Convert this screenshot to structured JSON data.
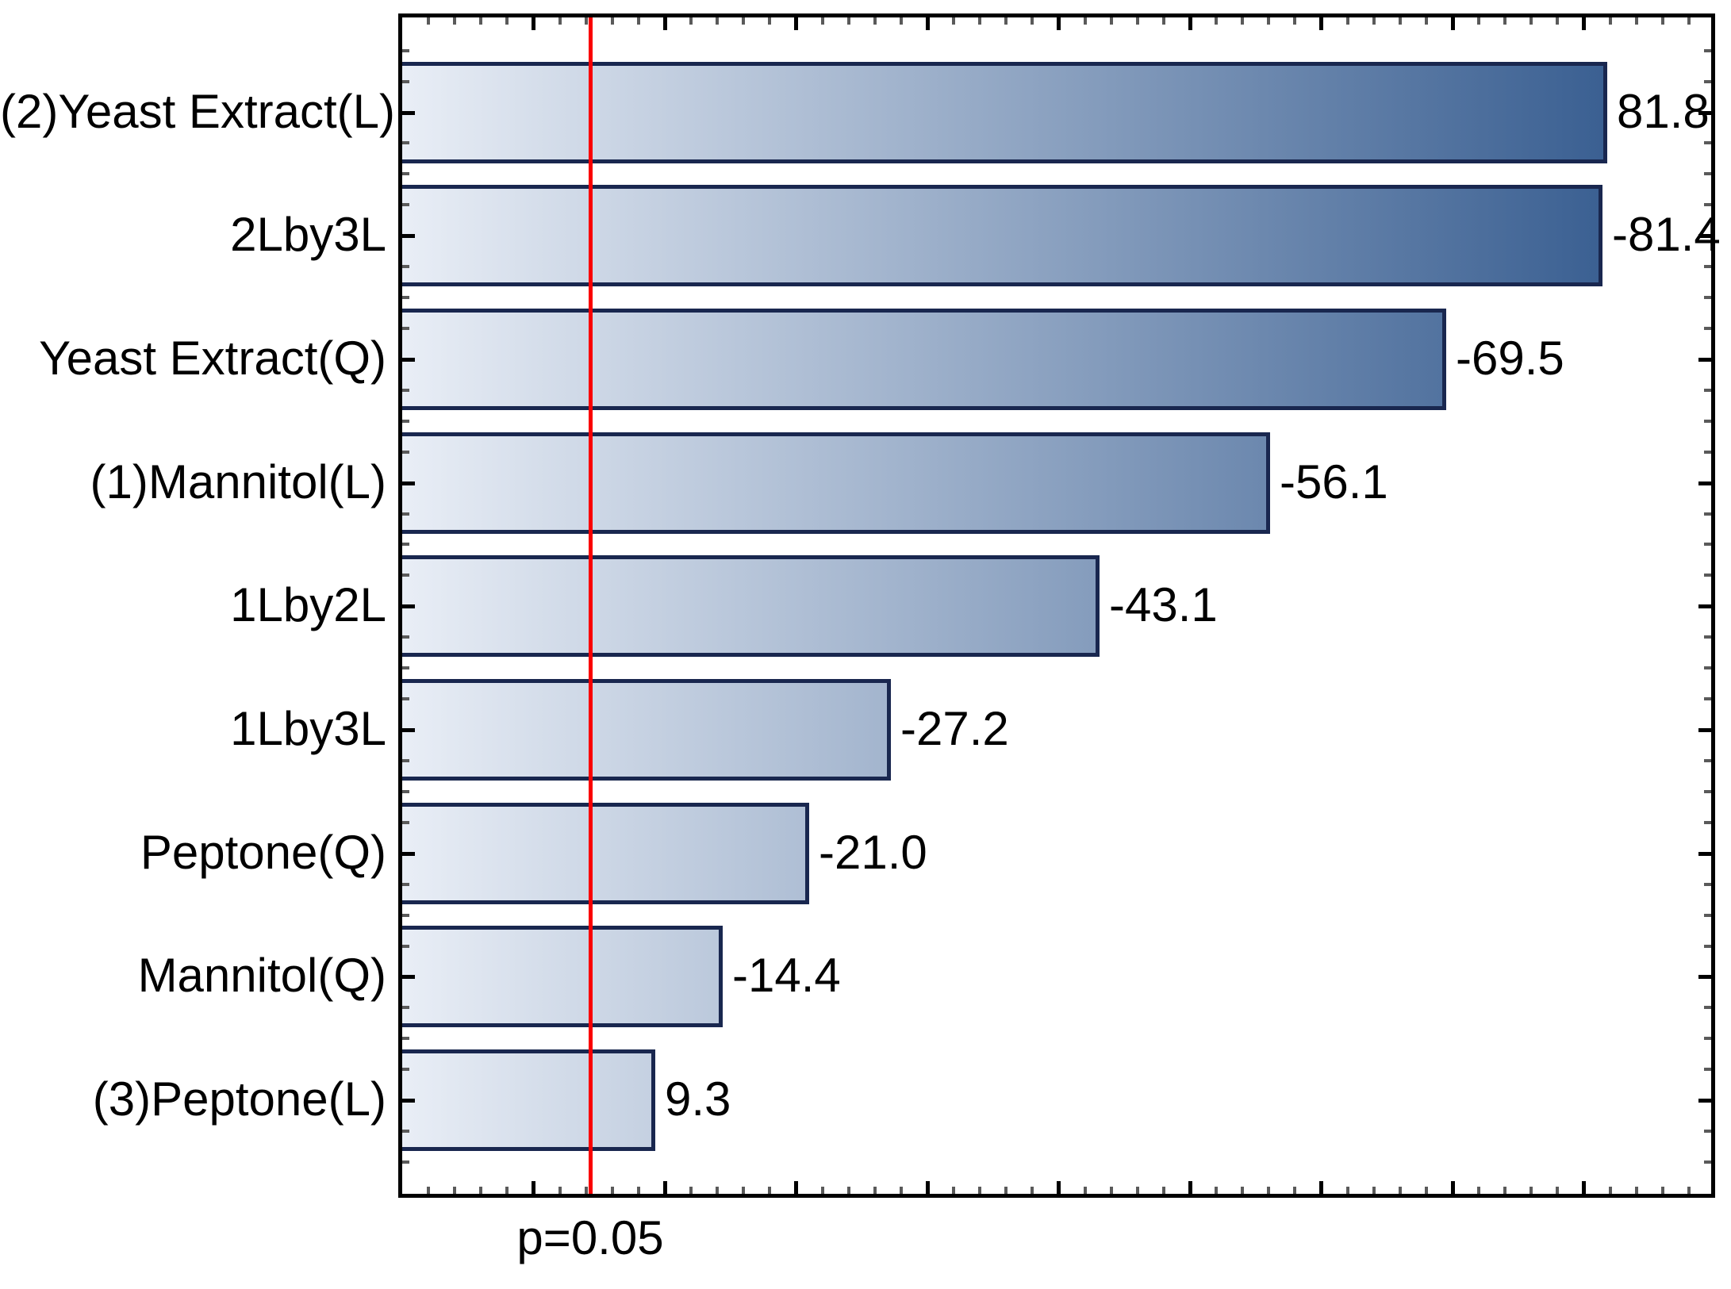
{
  "chart_data": {
    "type": "bar",
    "orientation": "horizontal-pareto",
    "title": "",
    "xlabel": "",
    "ylabel": "",
    "categories": [
      "(2)Yeast Extract(L)",
      "2Lby3L",
      "Yeast Extract(Q)",
      "(1)Mannitol(L)",
      "1Lby2L",
      "1Lby3L",
      "Peptone(Q)",
      "Mannitol(Q)",
      "(3)Peptone(L)"
    ],
    "values": [
      81.8,
      -81.4,
      -69.5,
      -56.1,
      -43.1,
      -27.2,
      -21.0,
      -14.4,
      9.3
    ],
    "value_labels": [
      "81.8",
      "-81.4",
      "-69.5",
      "-56.1",
      "-43.1",
      "-27.2",
      "-21.0",
      "-14.4",
      "9.3"
    ],
    "bar_length_metric": "absolute value of standardized effect",
    "x_axis": {
      "min": -10,
      "max": 89.7,
      "minor_tick_step": 2,
      "major_tick_step": 10,
      "tick_labels_shown": false
    },
    "threshold": {
      "value": 4.3,
      "label": "p=0.05",
      "color": "#fa0000"
    },
    "grid": false,
    "legend": "none",
    "colors": {
      "bar_gradient_start": "#e9eef6",
      "bar_gradient_end": "#2b5389",
      "bar_border": "#19274f",
      "axis": "#000000",
      "text": "#000000",
      "background": "#ffffff"
    }
  }
}
